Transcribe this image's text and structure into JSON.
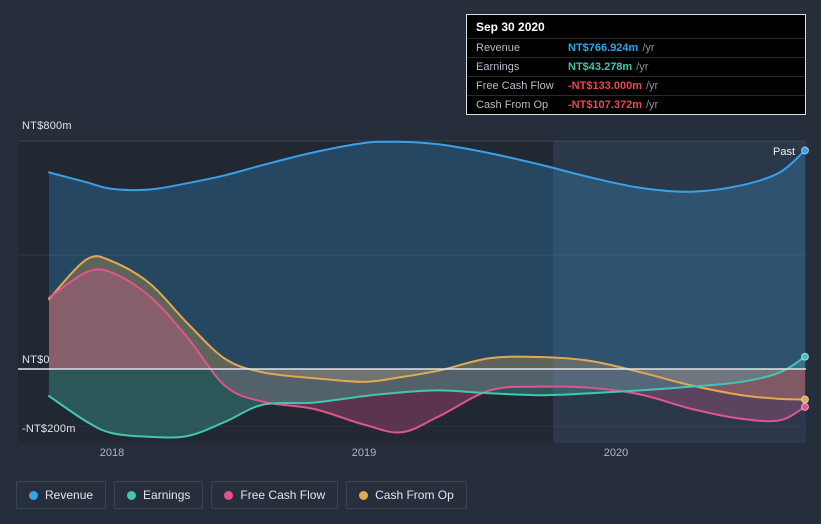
{
  "tooltip": {
    "date": "Sep 30 2020",
    "rows": [
      {
        "label": "Revenue",
        "value": "NT$766.924m",
        "suffix": "/yr",
        "color": "#2fa7e6"
      },
      {
        "label": "Earnings",
        "value": "NT$43.278m",
        "suffix": "/yr",
        "color": "#3fc6ae"
      },
      {
        "label": "Free Cash Flow",
        "value": "-NT$133.000m",
        "suffix": "/yr",
        "color": "#e8494f"
      },
      {
        "label": "Cash From Op",
        "value": "-NT$107.372m",
        "suffix": "/yr",
        "color": "#e8494f"
      }
    ]
  },
  "chart_data": {
    "type": "area",
    "title": "",
    "x_unit": "year",
    "x": [
      2017.75,
      2017.9,
      2018.0,
      2018.15,
      2018.3,
      2018.45,
      2018.6,
      2018.8,
      2019.0,
      2019.15,
      2019.3,
      2019.5,
      2019.7,
      2019.9,
      2020.1,
      2020.3,
      2020.5,
      2020.65,
      2020.75
    ],
    "series": [
      {
        "name": "Revenue",
        "color": "#36a2e9",
        "fill_alpha": 0.26,
        "values": [
          690,
          655,
          632,
          630,
          652,
          680,
          716,
          760,
          793,
          797,
          788,
          757,
          717,
          672,
          635,
          622,
          645,
          690,
          767
        ]
      },
      {
        "name": "Cash From Op",
        "color": "#e3a94f",
        "fill_alpha": 0.3,
        "values": [
          245,
          385,
          378,
          300,
          160,
          35,
          -12,
          -32,
          -45,
          -28,
          -5,
          38,
          42,
          28,
          -12,
          -58,
          -92,
          -105,
          -107
        ]
      },
      {
        "name": "Free Cash Flow",
        "color": "#e0558f",
        "fill_alpha": 0.3,
        "values": [
          250,
          340,
          338,
          255,
          110,
          -60,
          -115,
          -140,
          -195,
          -222,
          -165,
          -75,
          -62,
          -66,
          -90,
          -140,
          -175,
          -180,
          -133
        ]
      },
      {
        "name": "Earnings",
        "color": "#41c6b4",
        "fill_alpha": 0.3,
        "values": [
          -95,
          -185,
          -225,
          -238,
          -235,
          -185,
          -125,
          -118,
          -95,
          -82,
          -75,
          -85,
          -92,
          -85,
          -75,
          -62,
          -45,
          -12,
          43
        ]
      }
    ],
    "y_ticks": [
      {
        "label": "NT$800m",
        "value": 800
      },
      {
        "label": "NT$0",
        "value": 0
      },
      {
        "label": "-NT$200m",
        "value": -200
      }
    ],
    "x_ticks": [
      {
        "label": "2018",
        "value": 2018
      },
      {
        "label": "2019",
        "value": 2019
      },
      {
        "label": "2020",
        "value": 2020
      }
    ],
    "past_label": "Past",
    "highlight_start": 2019.75,
    "ylim": [
      -250,
      870
    ],
    "xlim": [
      2017.6,
      2020.78
    ],
    "legend_position": "bottom-left",
    "grid": true
  },
  "legend": {
    "items": [
      {
        "label": "Revenue",
        "color": "#36a2e9"
      },
      {
        "label": "Earnings",
        "color": "#41c6b4"
      },
      {
        "label": "Free Cash Flow",
        "color": "#e0558f"
      },
      {
        "label": "Cash From Op",
        "color": "#e3a94f"
      }
    ]
  }
}
